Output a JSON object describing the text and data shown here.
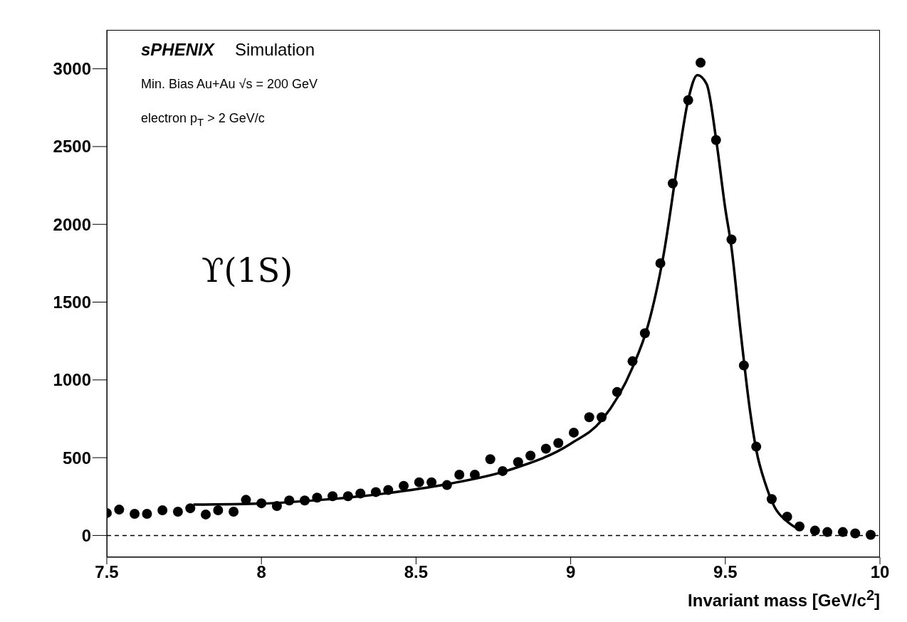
{
  "chart_data": {
    "type": "scatter",
    "xlabel": "Invariant mass [GeV/c$^{2}$]",
    "annotations": [
      "sPHENIX",
      "Simulation",
      "Min. Bias Au+Au √s = 200 GeV",
      "electron p$_{T}$ > 2 GeV/c",
      "ϒ(1S)"
    ],
    "xlim": [
      7.5,
      10
    ],
    "xticks": [
      7.5,
      8,
      8.5,
      9,
      9.5,
      10
    ],
    "ylim": [
      -140,
      3250
    ],
    "yticks": [
      0,
      500,
      1000,
      1500,
      2000,
      2500,
      3000
    ],
    "marker": "circle",
    "ref_lines": [
      {
        "axis": "y",
        "value": 0,
        "color": "#000000",
        "line_style": "dashed"
      }
    ],
    "series": [
      {
        "color": "#000000",
        "x": [
          7.5,
          7.54,
          7.59,
          7.63,
          7.68,
          7.73,
          7.77,
          7.82,
          7.86,
          7.91,
          7.95,
          8.0,
          8.05,
          8.09,
          8.14,
          8.18,
          8.23,
          8.28,
          8.32,
          8.37,
          8.41,
          8.46,
          8.51,
          8.55,
          8.6,
          8.64,
          8.69,
          8.74,
          8.78,
          8.83,
          8.87,
          8.92,
          8.96,
          9.01,
          9.06,
          9.1,
          9.15,
          9.2,
          9.24,
          9.29,
          9.33,
          9.38,
          9.42,
          9.47,
          9.52,
          9.56,
          9.6,
          9.65,
          9.7,
          9.74,
          9.79,
          9.83,
          9.88,
          9.92,
          9.97
        ],
        "values": [
          144,
          166,
          139,
          139,
          162,
          153,
          175,
          135,
          162,
          153,
          229,
          207,
          189,
          225,
          225,
          243,
          252,
          252,
          270,
          279,
          292,
          319,
          342,
          342,
          324,
          391,
          391,
          490,
          414,
          472,
          513,
          558,
          594,
          661,
          760,
          760,
          922,
          1120,
          1300,
          1750,
          2263,
          2798,
          3039,
          2542,
          1903,
          1093,
          571,
          234,
          121,
          58,
          31,
          22,
          22,
          13,
          4
        ]
      },
      {
        "type": "line",
        "color": "#000000",
        "line_style": "solid",
        "marker": "none",
        "x": [
          7.78,
          8.0,
          8.2,
          8.4,
          8.6,
          8.8,
          9.0,
          9.1,
          9.2,
          9.25,
          9.3,
          9.35,
          9.38,
          9.41,
          9.44,
          9.47,
          9.5,
          9.52,
          9.55,
          9.58,
          9.6,
          9.63,
          9.66,
          9.7,
          9.74
        ],
        "values": [
          198,
          205,
          230,
          270,
          330,
          420,
          590,
          740,
          1080,
          1350,
          1800,
          2450,
          2800,
          2960,
          2900,
          2550,
          2100,
          1850,
          1300,
          800,
          550,
          330,
          180,
          90,
          36
        ]
      }
    ]
  }
}
